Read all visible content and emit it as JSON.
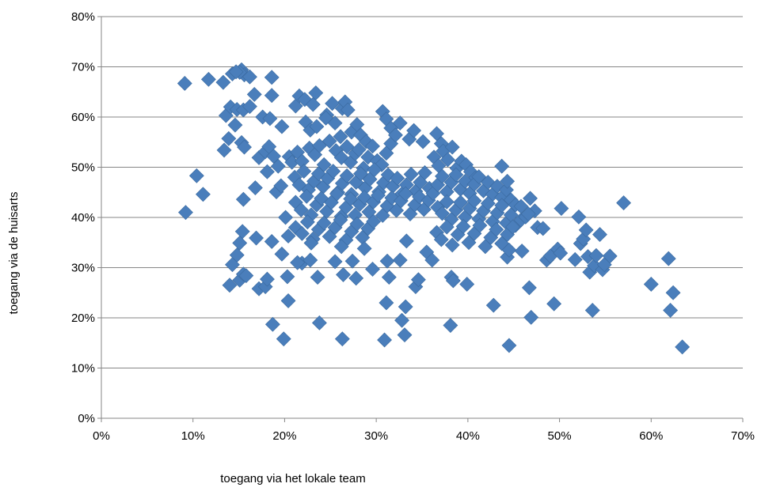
{
  "chart_data": {
    "type": "scatter",
    "title": "",
    "xlabel": "toegang  via het lokale team",
    "ylabel": "toegang via de huisarts",
    "xlim": [
      0,
      0.7
    ],
    "ylim": [
      0,
      0.8
    ],
    "x_ticks": [
      "0%",
      "10%",
      "20%",
      "30%",
      "40%",
      "50%",
      "60%",
      "70%"
    ],
    "y_ticks": [
      "0%",
      "10%",
      "20%",
      "30%",
      "40%",
      "50%",
      "60%",
      "70%",
      "80%"
    ],
    "grid": "horizontal",
    "legend": "none",
    "marker": "diamond",
    "colors": {
      "marker": "#4a7ebb",
      "marker_edge": "#3a6aa0",
      "grid": "#868686",
      "axis": "#868686"
    },
    "points": [
      [
        0.091,
        0.667
      ],
      [
        0.117,
        0.675
      ],
      [
        0.133,
        0.669
      ],
      [
        0.143,
        0.686
      ],
      [
        0.153,
        0.694
      ],
      [
        0.156,
        0.684
      ],
      [
        0.162,
        0.68
      ],
      [
        0.186,
        0.679
      ],
      [
        0.151,
        0.689
      ],
      [
        0.147,
        0.69
      ],
      [
        0.136,
        0.603
      ],
      [
        0.141,
        0.62
      ],
      [
        0.148,
        0.615
      ],
      [
        0.155,
        0.614
      ],
      [
        0.162,
        0.621
      ],
      [
        0.167,
        0.645
      ],
      [
        0.176,
        0.6
      ],
      [
        0.184,
        0.597
      ],
      [
        0.186,
        0.643
      ],
      [
        0.197,
        0.581
      ],
      [
        0.146,
        0.584
      ],
      [
        0.139,
        0.557
      ],
      [
        0.153,
        0.549
      ],
      [
        0.156,
        0.54
      ],
      [
        0.134,
        0.534
      ],
      [
        0.172,
        0.519
      ],
      [
        0.179,
        0.531
      ],
      [
        0.183,
        0.541
      ],
      [
        0.188,
        0.522
      ],
      [
        0.193,
        0.502
      ],
      [
        0.181,
        0.491
      ],
      [
        0.205,
        0.521
      ],
      [
        0.208,
        0.51
      ],
      [
        0.191,
        0.451
      ],
      [
        0.196,
        0.463
      ],
      [
        0.168,
        0.459
      ],
      [
        0.155,
        0.436
      ],
      [
        0.104,
        0.483
      ],
      [
        0.111,
        0.446
      ],
      [
        0.092,
        0.41
      ],
      [
        0.201,
        0.4
      ],
      [
        0.204,
        0.363
      ],
      [
        0.197,
        0.327
      ],
      [
        0.169,
        0.359
      ],
      [
        0.186,
        0.352
      ],
      [
        0.154,
        0.372
      ],
      [
        0.151,
        0.349
      ],
      [
        0.148,
        0.325
      ],
      [
        0.143,
        0.306
      ],
      [
        0.14,
        0.265
      ],
      [
        0.151,
        0.275
      ],
      [
        0.155,
        0.287
      ],
      [
        0.158,
        0.284
      ],
      [
        0.172,
        0.258
      ],
      [
        0.179,
        0.262
      ],
      [
        0.181,
        0.277
      ],
      [
        0.203,
        0.282
      ],
      [
        0.204,
        0.234
      ],
      [
        0.187,
        0.187
      ],
      [
        0.199,
        0.158
      ],
      [
        0.212,
        0.622
      ],
      [
        0.216,
        0.642
      ],
      [
        0.222,
        0.635
      ],
      [
        0.231,
        0.625
      ],
      [
        0.234,
        0.648
      ],
      [
        0.246,
        0.604
      ],
      [
        0.252,
        0.627
      ],
      [
        0.263,
        0.617
      ],
      [
        0.266,
        0.63
      ],
      [
        0.269,
        0.614
      ],
      [
        0.223,
        0.59
      ],
      [
        0.228,
        0.574
      ],
      [
        0.235,
        0.581
      ],
      [
        0.245,
        0.598
      ],
      [
        0.255,
        0.588
      ],
      [
        0.261,
        0.561
      ],
      [
        0.273,
        0.57
      ],
      [
        0.279,
        0.585
      ],
      [
        0.283,
        0.564
      ],
      [
        0.289,
        0.551
      ],
      [
        0.214,
        0.53
      ],
      [
        0.219,
        0.512
      ],
      [
        0.227,
        0.538
      ],
      [
        0.233,
        0.525
      ],
      [
        0.238,
        0.543
      ],
      [
        0.243,
        0.505
      ],
      [
        0.249,
        0.552
      ],
      [
        0.256,
        0.533
      ],
      [
        0.262,
        0.519
      ],
      [
        0.268,
        0.541
      ],
      [
        0.272,
        0.51
      ],
      [
        0.277,
        0.527
      ],
      [
        0.281,
        0.535
      ],
      [
        0.286,
        0.498
      ],
      [
        0.291,
        0.52
      ],
      [
        0.296,
        0.542
      ],
      [
        0.301,
        0.513
      ],
      [
        0.306,
        0.505
      ],
      [
        0.311,
        0.528
      ],
      [
        0.316,
        0.547
      ],
      [
        0.211,
        0.48
      ],
      [
        0.216,
        0.465
      ],
      [
        0.221,
        0.492
      ],
      [
        0.226,
        0.455
      ],
      [
        0.232,
        0.472
      ],
      [
        0.237,
        0.487
      ],
      [
        0.242,
        0.461
      ],
      [
        0.247,
        0.478
      ],
      [
        0.253,
        0.492
      ],
      [
        0.258,
        0.45
      ],
      [
        0.263,
        0.468
      ],
      [
        0.268,
        0.483
      ],
      [
        0.273,
        0.446
      ],
      [
        0.278,
        0.47
      ],
      [
        0.283,
        0.487
      ],
      [
        0.288,
        0.459
      ],
      [
        0.293,
        0.476
      ],
      [
        0.298,
        0.495
      ],
      [
        0.303,
        0.451
      ],
      [
        0.308,
        0.469
      ],
      [
        0.313,
        0.485
      ],
      [
        0.318,
        0.462
      ],
      [
        0.323,
        0.478
      ],
      [
        0.328,
        0.447
      ],
      [
        0.333,
        0.465
      ],
      [
        0.338,
        0.486
      ],
      [
        0.343,
        0.452
      ],
      [
        0.348,
        0.47
      ],
      [
        0.353,
        0.489
      ],
      [
        0.358,
        0.458
      ],
      [
        0.212,
        0.43
      ],
      [
        0.218,
        0.415
      ],
      [
        0.224,
        0.442
      ],
      [
        0.229,
        0.405
      ],
      [
        0.235,
        0.425
      ],
      [
        0.24,
        0.438
      ],
      [
        0.246,
        0.412
      ],
      [
        0.251,
        0.43
      ],
      [
        0.257,
        0.447
      ],
      [
        0.262,
        0.402
      ],
      [
        0.267,
        0.42
      ],
      [
        0.272,
        0.437
      ],
      [
        0.277,
        0.405
      ],
      [
        0.282,
        0.426
      ],
      [
        0.287,
        0.44
      ],
      [
        0.292,
        0.411
      ],
      [
        0.297,
        0.431
      ],
      [
        0.302,
        0.444
      ],
      [
        0.307,
        0.404
      ],
      [
        0.312,
        0.423
      ],
      [
        0.317,
        0.439
      ],
      [
        0.322,
        0.414
      ],
      [
        0.327,
        0.433
      ],
      [
        0.332,
        0.447
      ],
      [
        0.337,
        0.407
      ],
      [
        0.342,
        0.425
      ],
      [
        0.347,
        0.441
      ],
      [
        0.352,
        0.416
      ],
      [
        0.357,
        0.434
      ],
      [
        0.362,
        0.448
      ],
      [
        0.212,
        0.38
      ],
      [
        0.219,
        0.368
      ],
      [
        0.225,
        0.391
      ],
      [
        0.231,
        0.357
      ],
      [
        0.237,
        0.376
      ],
      [
        0.243,
        0.389
      ],
      [
        0.249,
        0.362
      ],
      [
        0.255,
        0.38
      ],
      [
        0.261,
        0.395
      ],
      [
        0.267,
        0.355
      ],
      [
        0.273,
        0.372
      ],
      [
        0.279,
        0.387
      ],
      [
        0.285,
        0.36
      ],
      [
        0.291,
        0.378
      ],
      [
        0.297,
        0.392
      ],
      [
        0.219,
        0.309
      ],
      [
        0.214,
        0.31
      ],
      [
        0.229,
        0.349
      ],
      [
        0.228,
        0.315
      ],
      [
        0.236,
        0.281
      ],
      [
        0.238,
        0.19
      ],
      [
        0.255,
        0.312
      ],
      [
        0.262,
        0.342
      ],
      [
        0.264,
        0.286
      ],
      [
        0.263,
        0.158
      ],
      [
        0.278,
        0.279
      ],
      [
        0.274,
        0.313
      ],
      [
        0.287,
        0.338
      ],
      [
        0.296,
        0.297
      ],
      [
        0.309,
        0.156
      ],
      [
        0.311,
        0.23
      ],
      [
        0.312,
        0.313
      ],
      [
        0.314,
        0.281
      ],
      [
        0.326,
        0.315
      ],
      [
        0.328,
        0.195
      ],
      [
        0.331,
        0.166
      ],
      [
        0.332,
        0.222
      ],
      [
        0.333,
        0.353
      ],
      [
        0.343,
        0.262
      ],
      [
        0.346,
        0.276
      ],
      [
        0.307,
        0.611
      ],
      [
        0.311,
        0.596
      ],
      [
        0.316,
        0.578
      ],
      [
        0.321,
        0.564
      ],
      [
        0.326,
        0.588
      ],
      [
        0.336,
        0.556
      ],
      [
        0.341,
        0.573
      ],
      [
        0.351,
        0.551
      ],
      [
        0.366,
        0.567
      ],
      [
        0.371,
        0.547
      ],
      [
        0.363,
        0.52
      ],
      [
        0.368,
        0.503
      ],
      [
        0.373,
        0.532
      ],
      [
        0.378,
        0.515
      ],
      [
        0.383,
        0.54
      ],
      [
        0.388,
        0.498
      ],
      [
        0.393,
        0.512
      ],
      [
        0.398,
        0.505
      ],
      [
        0.403,
        0.491
      ],
      [
        0.408,
        0.478
      ],
      [
        0.367,
        0.465
      ],
      [
        0.372,
        0.482
      ],
      [
        0.377,
        0.451
      ],
      [
        0.382,
        0.47
      ],
      [
        0.387,
        0.485
      ],
      [
        0.392,
        0.456
      ],
      [
        0.397,
        0.472
      ],
      [
        0.402,
        0.448
      ],
      [
        0.407,
        0.466
      ],
      [
        0.412,
        0.481
      ],
      [
        0.417,
        0.453
      ],
      [
        0.422,
        0.47
      ],
      [
        0.427,
        0.446
      ],
      [
        0.432,
        0.462
      ],
      [
        0.437,
        0.44
      ],
      [
        0.442,
        0.455
      ],
      [
        0.447,
        0.435
      ],
      [
        0.452,
        0.425
      ],
      [
        0.437,
        0.502
      ],
      [
        0.443,
        0.472
      ],
      [
        0.367,
        0.42
      ],
      [
        0.372,
        0.408
      ],
      [
        0.377,
        0.431
      ],
      [
        0.382,
        0.396
      ],
      [
        0.387,
        0.415
      ],
      [
        0.392,
        0.43
      ],
      [
        0.397,
        0.401
      ],
      [
        0.402,
        0.418
      ],
      [
        0.407,
        0.433
      ],
      [
        0.412,
        0.397
      ],
      [
        0.417,
        0.413
      ],
      [
        0.422,
        0.428
      ],
      [
        0.427,
        0.392
      ],
      [
        0.432,
        0.409
      ],
      [
        0.437,
        0.424
      ],
      [
        0.442,
        0.389
      ],
      [
        0.447,
        0.405
      ],
      [
        0.452,
        0.384
      ],
      [
        0.458,
        0.395
      ],
      [
        0.463,
        0.401
      ],
      [
        0.366,
        0.37
      ],
      [
        0.371,
        0.356
      ],
      [
        0.377,
        0.381
      ],
      [
        0.383,
        0.345
      ],
      [
        0.389,
        0.366
      ],
      [
        0.395,
        0.382
      ],
      [
        0.401,
        0.35
      ],
      [
        0.407,
        0.368
      ],
      [
        0.413,
        0.384
      ],
      [
        0.419,
        0.342
      ],
      [
        0.425,
        0.36
      ],
      [
        0.431,
        0.376
      ],
      [
        0.437,
        0.348
      ],
      [
        0.443,
        0.366
      ],
      [
        0.449,
        0.381
      ],
      [
        0.355,
        0.331
      ],
      [
        0.361,
        0.315
      ],
      [
        0.382,
        0.281
      ],
      [
        0.384,
        0.274
      ],
      [
        0.399,
        0.267
      ],
      [
        0.381,
        0.185
      ],
      [
        0.428,
        0.225
      ],
      [
        0.443,
        0.321
      ],
      [
        0.445,
        0.335
      ],
      [
        0.445,
        0.145
      ],
      [
        0.459,
        0.333
      ],
      [
        0.467,
        0.26
      ],
      [
        0.469,
        0.201
      ],
      [
        0.468,
        0.438
      ],
      [
        0.473,
        0.413
      ],
      [
        0.476,
        0.38
      ],
      [
        0.482,
        0.378
      ],
      [
        0.486,
        0.315
      ],
      [
        0.49,
        0.323
      ],
      [
        0.494,
        0.228
      ],
      [
        0.498,
        0.337
      ],
      [
        0.501,
        0.329
      ],
      [
        0.502,
        0.418
      ],
      [
        0.517,
        0.316
      ],
      [
        0.521,
        0.401
      ],
      [
        0.523,
        0.348
      ],
      [
        0.526,
        0.357
      ],
      [
        0.529,
        0.375
      ],
      [
        0.531,
        0.322
      ],
      [
        0.533,
        0.291
      ],
      [
        0.536,
        0.215
      ],
      [
        0.538,
        0.304
      ],
      [
        0.54,
        0.324
      ],
      [
        0.544,
        0.366
      ],
      [
        0.547,
        0.296
      ],
      [
        0.549,
        0.306
      ],
      [
        0.555,
        0.323
      ],
      [
        0.57,
        0.429
      ],
      [
        0.6,
        0.267
      ],
      [
        0.619,
        0.318
      ],
      [
        0.621,
        0.215
      ],
      [
        0.624,
        0.25
      ],
      [
        0.634,
        0.142
      ],
      [
        0.458,
        0.422
      ],
      [
        0.466,
        0.407
      ]
    ]
  }
}
